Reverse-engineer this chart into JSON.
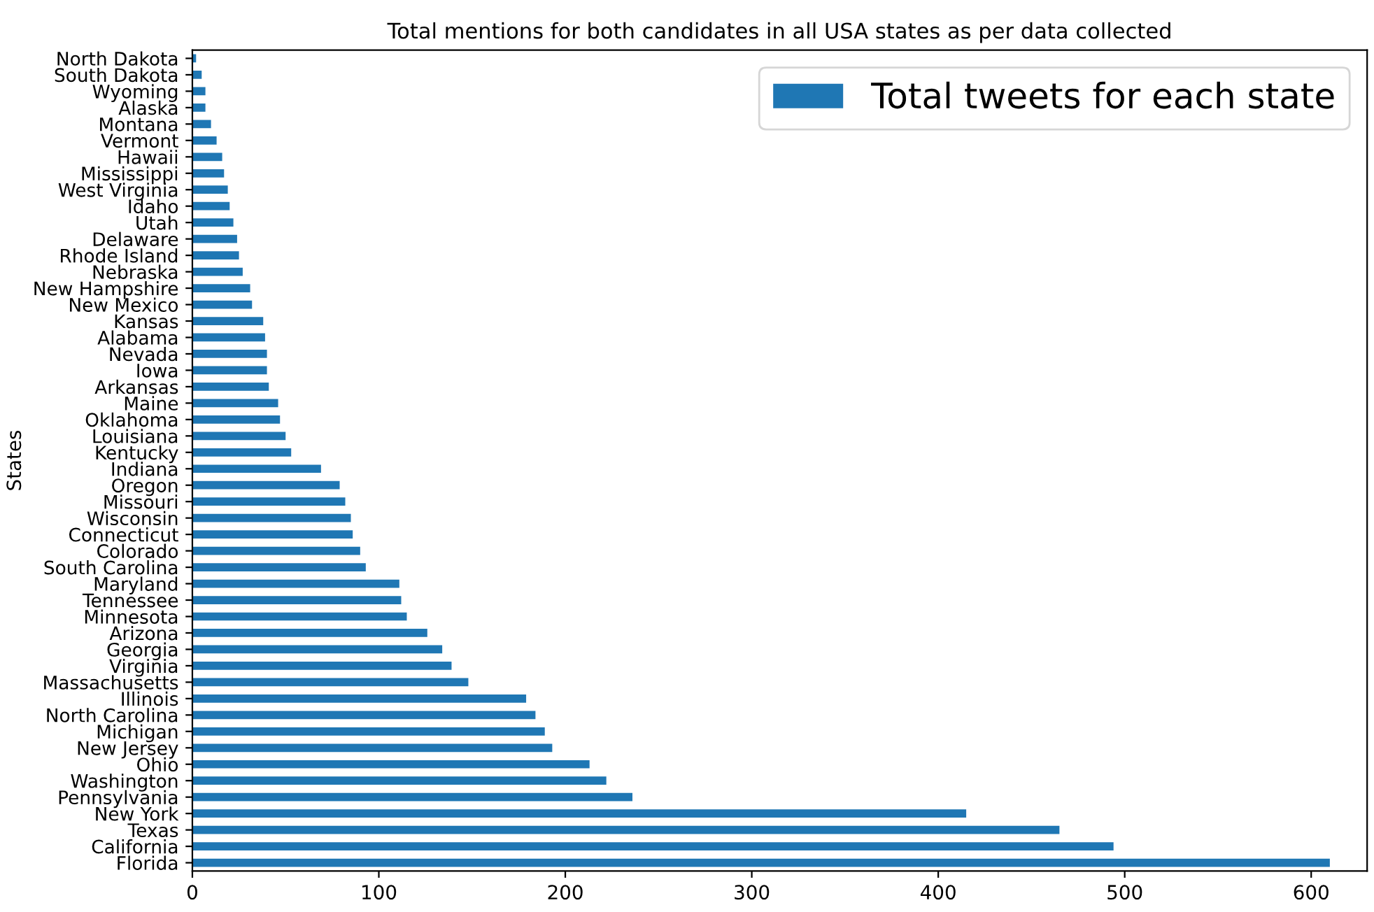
{
  "chart_data": {
    "type": "bar",
    "orientation": "horizontal",
    "title": "Total mentions for both candidates in all USA states as per data collected",
    "ylabel": "States",
    "categories": [
      "North Dakota",
      "South Dakota",
      "Wyoming",
      "Alaska",
      "Montana",
      "Vermont",
      "Hawaii",
      "Mississippi",
      "West Virginia",
      "Idaho",
      "Utah",
      "Delaware",
      "Rhode Island",
      "Nebraska",
      "New Hampshire",
      "New Mexico",
      "Kansas",
      "Alabama",
      "Nevada",
      "Iowa",
      "Arkansas",
      "Maine",
      "Oklahoma",
      "Louisiana",
      "Kentucky",
      "Indiana",
      "Oregon",
      "Missouri",
      "Wisconsin",
      "Connecticut",
      "Colorado",
      "South Carolina",
      "Maryland",
      "Tennessee",
      "Minnesota",
      "Arizona",
      "Georgia",
      "Virginia",
      "Massachusetts",
      "Illinois",
      "North Carolina",
      "Michigan",
      "New Jersey",
      "Ohio",
      "Washington",
      "Pennsylvania",
      "New York",
      "Texas",
      "California",
      "Florida"
    ],
    "series": [
      {
        "name": "Total tweets for each state",
        "color": "#1f77b4",
        "values": [
          2,
          5,
          7,
          7,
          10,
          13,
          16,
          17,
          19,
          20,
          22,
          24,
          25,
          27,
          31,
          32,
          38,
          39,
          40,
          40,
          41,
          46,
          47,
          50,
          53,
          69,
          79,
          82,
          85,
          86,
          90,
          93,
          111,
          112,
          115,
          126,
          134,
          139,
          148,
          179,
          184,
          189,
          193,
          213,
          222,
          236,
          415,
          465,
          494,
          610
        ]
      }
    ],
    "xlim": [
      0,
      630
    ],
    "xticks": [
      0,
      100,
      200,
      300,
      400,
      500,
      600
    ],
    "grid": false,
    "legend": "top right"
  }
}
